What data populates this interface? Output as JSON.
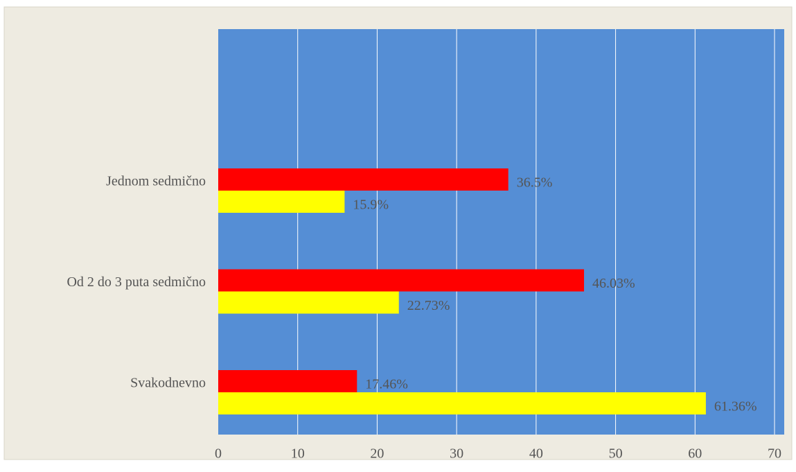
{
  "chart_data": {
    "type": "hbar",
    "categories": [
      "Jednom sedmično",
      "Od 2 do 3 puta sedmično",
      "Svakodnevno"
    ],
    "series": [
      {
        "color": "#ff0000",
        "values": [
          36.5,
          46.03,
          17.46
        ],
        "value_labels": [
          "36.5%",
          "46.03%",
          "17.46%"
        ]
      },
      {
        "color": "#ffff00",
        "values": [
          15.9,
          22.73,
          61.36
        ],
        "value_labels": [
          "15.9%",
          "22.73%",
          "61.36%"
        ]
      }
    ],
    "xlim": [
      0,
      70
    ],
    "xticks": [
      0,
      10,
      20,
      30,
      40,
      50,
      60,
      70
    ],
    "grid": true,
    "plot_color": "#558ed5"
  }
}
